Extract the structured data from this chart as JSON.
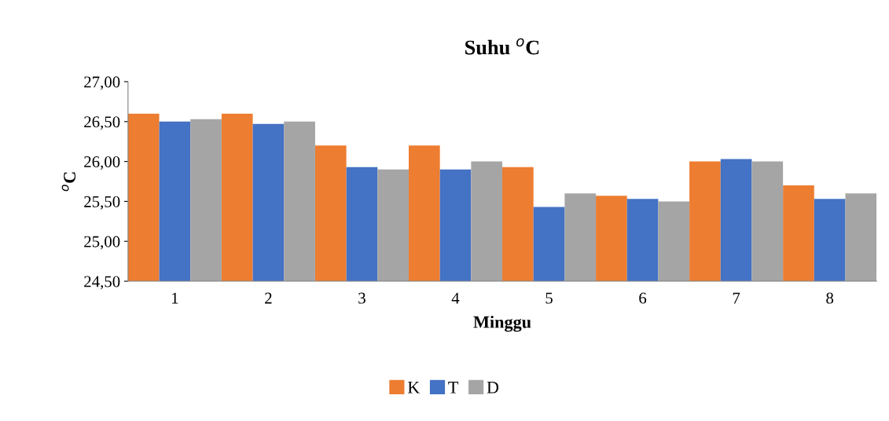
{
  "chart_data": {
    "type": "bar",
    "title": "Suhu $^{o}$C",
    "xlabel": "Minggu",
    "ylabel": "$^{o}$C",
    "categories": [
      "1",
      "2",
      "3",
      "4",
      "5",
      "6",
      "7",
      "8"
    ],
    "series": [
      {
        "name": "K",
        "color": "#ed7d31",
        "values": [
          26.6,
          26.6,
          26.2,
          26.2,
          25.93,
          25.57,
          26.0,
          25.7
        ]
      },
      {
        "name": "T",
        "color": "#4472c4",
        "values": [
          26.5,
          26.47,
          25.93,
          25.9,
          25.43,
          25.53,
          26.03,
          25.53
        ]
      },
      {
        "name": "D",
        "color": "#a5a5a5",
        "values": [
          26.53,
          26.5,
          25.9,
          26.0,
          25.6,
          25.5,
          26.0,
          25.6
        ]
      }
    ],
    "ylim": [
      24.5,
      27.0
    ],
    "yticks": [
      {
        "value": 24.5,
        "label": "24,50"
      },
      {
        "value": 25.0,
        "label": "25,00"
      },
      {
        "value": 25.5,
        "label": "25,50"
      },
      {
        "value": 26.0,
        "label": "26,00"
      },
      {
        "value": 26.5,
        "label": "26,50"
      },
      {
        "value": 27.0,
        "label": "27,00"
      }
    ],
    "grid": false,
    "legend": "bottom"
  }
}
